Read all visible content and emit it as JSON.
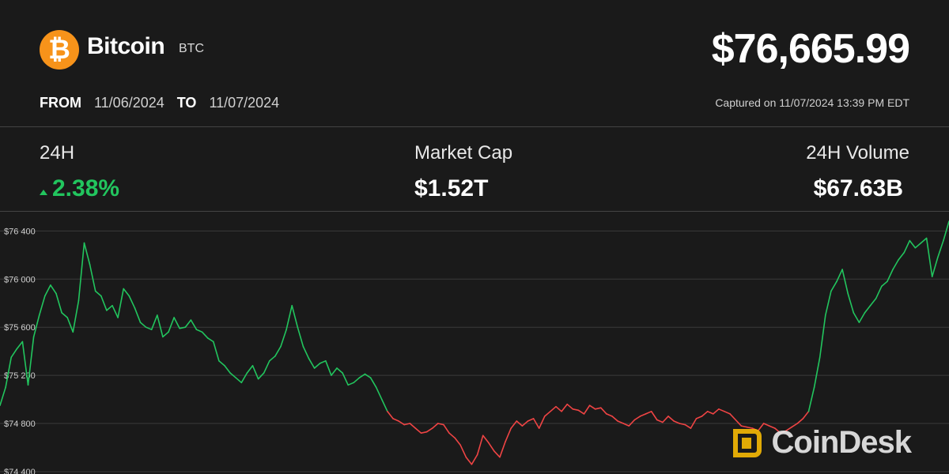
{
  "header": {
    "logo_symbol": "₿",
    "coin_name": "Bitcoin",
    "ticker": "BTC",
    "price": "$76,665.99",
    "from_label": "FROM",
    "from_date": "11/06/2024",
    "to_label": "TO",
    "to_date": "11/07/2024",
    "captured": "Captured on 11/07/2024 13:39 PM EDT"
  },
  "stats": {
    "change_label": "24H",
    "change_value": "2.38%",
    "market_cap_label": "Market Cap",
    "market_cap_value": "$1.52T",
    "volume_label": "24H Volume",
    "volume_value": "$67.63B"
  },
  "colors": {
    "background": "#1a1a1a",
    "up": "#22c55e",
    "down": "#ef4444",
    "brand": "#f7931a",
    "watermark": "#f2b705"
  },
  "watermark": {
    "text": "CoinDesk"
  },
  "chart_data": {
    "type": "line",
    "title": "",
    "xlabel": "",
    "ylabel": "",
    "ylim": [
      74380,
      76560
    ],
    "yticks": [
      74400,
      74800,
      75200,
      75600,
      76000,
      76400
    ],
    "ytick_labels": [
      "$74 400",
      "$74 800",
      "$75 200",
      "$75 600",
      "$76 000",
      "$76 400"
    ],
    "grid": true,
    "baseline": 74950,
    "series": [
      {
        "values": [
          74950,
          75100,
          75350,
          75420,
          75480,
          75120,
          75520,
          75700,
          75860,
          75950,
          75880,
          75720,
          75680,
          75560,
          75820,
          76300,
          76120,
          75900,
          75860,
          75740,
          75780,
          75680,
          75920,
          75860,
          75760,
          75640,
          75600,
          75580,
          75700,
          75520,
          75560,
          75680,
          75590,
          75600,
          75660,
          75580,
          75560,
          75510,
          75480,
          75320,
          75280,
          75220,
          75180,
          75140,
          75220,
          75280,
          75170,
          75220,
          75320,
          75360,
          75440,
          75580,
          75780,
          75600,
          75440,
          75340,
          75260,
          75300,
          75320,
          75200,
          75260,
          75220,
          75120,
          75140,
          75180,
          75210,
          75180,
          75100,
          75000,
          74900,
          74840,
          74820,
          74790,
          74800,
          74760,
          74720,
          74730,
          74760,
          74800,
          74790,
          74720,
          74680,
          74620,
          74520,
          74460,
          74540,
          74700,
          74640,
          74570,
          74520,
          74650,
          74760,
          74820,
          74780,
          74820,
          74840,
          74760,
          74860,
          74900,
          74940,
          74900,
          74960,
          74920,
          74910,
          74880,
          74950,
          74920,
          74930,
          74880,
          74860,
          74820,
          74800,
          74780,
          74830,
          74860,
          74880,
          74900,
          74830,
          74810,
          74860,
          74820,
          74800,
          74790,
          74760,
          74840,
          74860,
          74900,
          74880,
          74920,
          74900,
          74880,
          74830,
          74780,
          74770,
          74760,
          74740,
          74800,
          74780,
          74760,
          74720,
          74740,
          74770,
          74800,
          74840,
          74900,
          75100,
          75350,
          75700,
          75900,
          75980,
          76080,
          75880,
          75720,
          75640,
          75720,
          75780,
          75840,
          75940,
          75980,
          76080,
          76160,
          76220,
          76320,
          76260,
          76300,
          76340,
          76020,
          76180,
          76320,
          76480
        ]
      }
    ]
  }
}
